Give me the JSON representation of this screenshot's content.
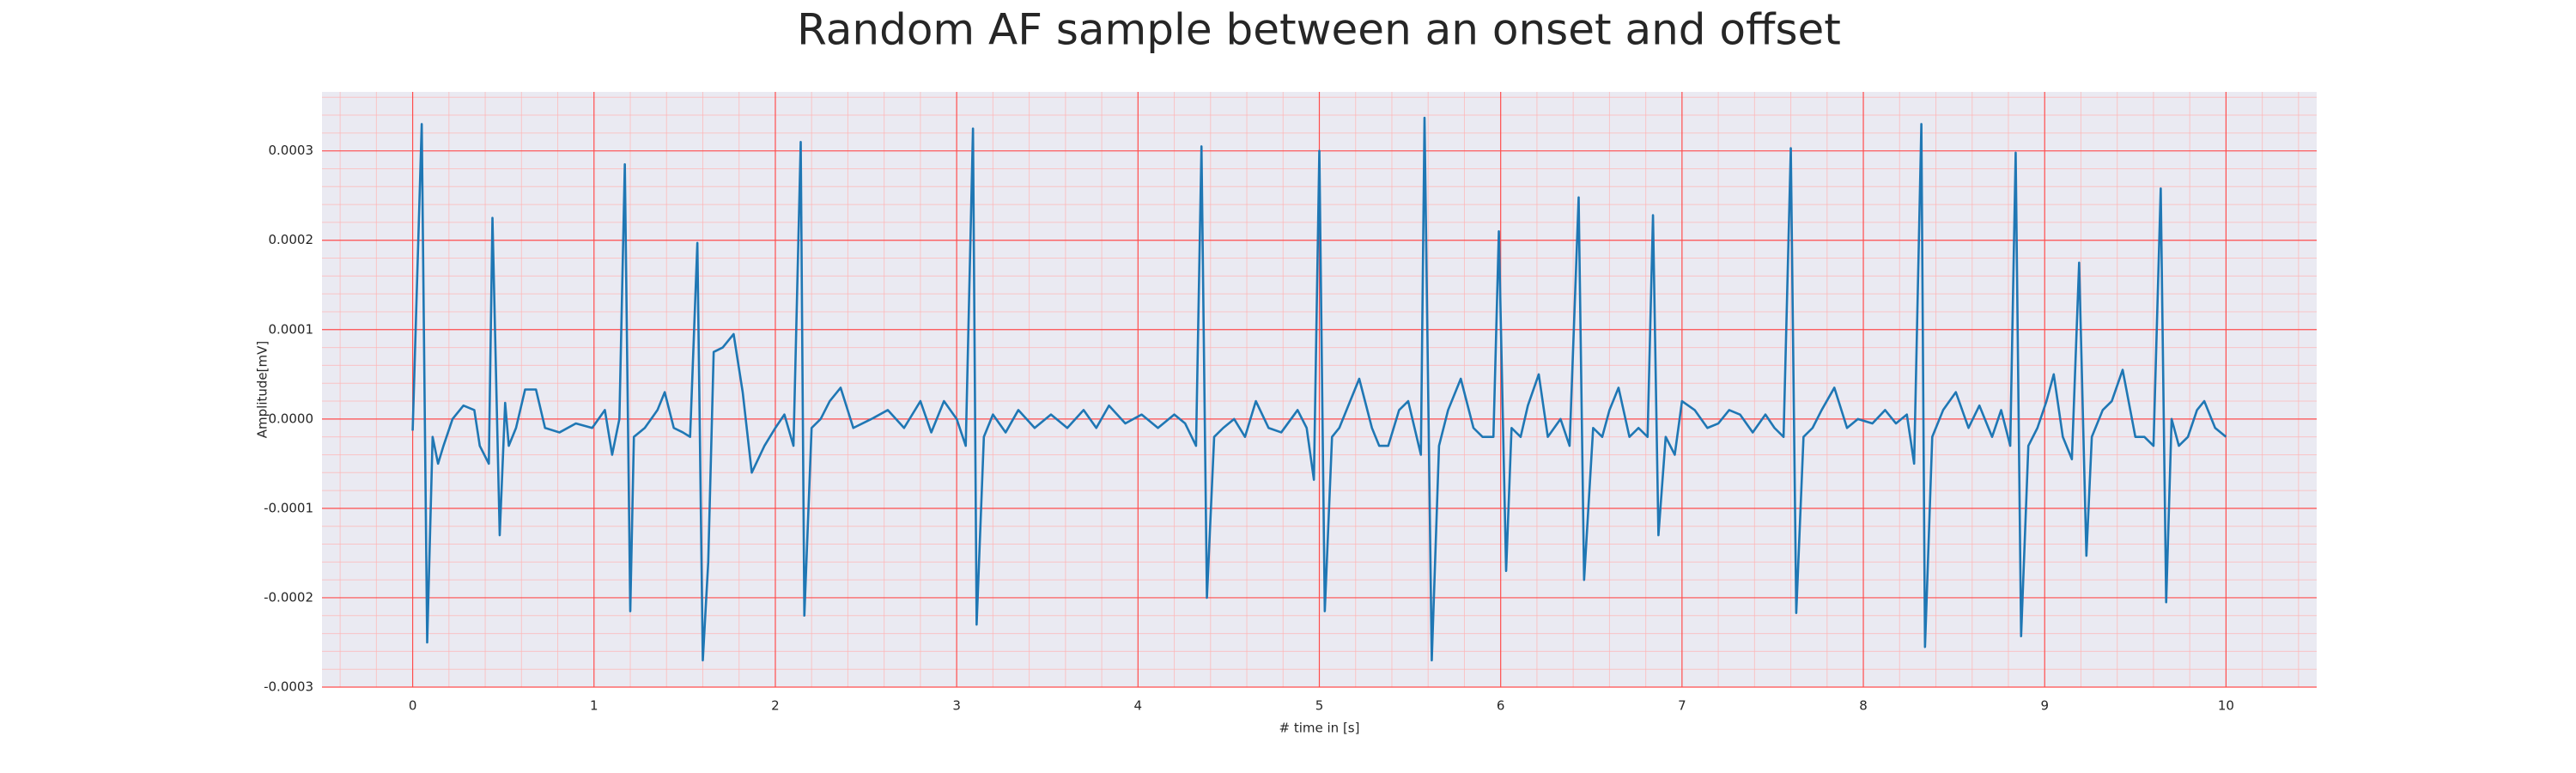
{
  "chart_data": {
    "type": "line",
    "title": "Random AF sample between an onset and offset",
    "x_label": "# time in [s]",
    "y_label": "Amplitude[mV]",
    "color": "#1f77b4",
    "grid": true,
    "minor_grid": true,
    "xlim": [
      -0.5,
      10.5
    ],
    "ylim": [
      -0.0003,
      0.000366
    ],
    "xticks": [
      0,
      1,
      2,
      3,
      4,
      5,
      6,
      7,
      8,
      9,
      10
    ],
    "yticks": [
      -0.0003,
      -0.0002,
      -0.0001,
      {
        "value": 0,
        "label": "0.0000"
      },
      0.0001,
      0.0002,
      0.0003
    ],
    "x": [
      0.0,
      0.05,
      0.08,
      0.11,
      0.14,
      0.17,
      0.22,
      0.28,
      0.34,
      0.37,
      0.42,
      0.44,
      0.48,
      0.51,
      0.53,
      0.57,
      0.62,
      0.68,
      0.73,
      0.81,
      0.9,
      0.99,
      1.06,
      1.1,
      1.14,
      1.17,
      1.2,
      1.22,
      1.28,
      1.35,
      1.39,
      1.44,
      1.49,
      1.53,
      1.57,
      1.6,
      1.63,
      1.66,
      1.71,
      1.77,
      1.82,
      1.87,
      1.94,
      2.0,
      2.05,
      2.1,
      2.14,
      2.16,
      2.2,
      2.25,
      2.3,
      2.36,
      2.43,
      2.53,
      2.62,
      2.71,
      2.8,
      2.86,
      2.93,
      3.0,
      3.05,
      3.09,
      3.11,
      3.15,
      3.2,
      3.27,
      3.34,
      3.43,
      3.52,
      3.61,
      3.7,
      3.77,
      3.84,
      3.93,
      4.02,
      4.11,
      4.2,
      4.26,
      4.32,
      4.35,
      4.38,
      4.42,
      4.47,
      4.53,
      4.59,
      4.65,
      4.72,
      4.79,
      4.88,
      4.93,
      4.97,
      5.0,
      5.03,
      5.07,
      5.11,
      5.17,
      5.22,
      5.29,
      5.33,
      5.38,
      5.44,
      5.49,
      5.56,
      5.58,
      5.62,
      5.66,
      5.71,
      5.78,
      5.85,
      5.9,
      5.96,
      5.99,
      6.03,
      6.06,
      6.11,
      6.15,
      6.21,
      6.26,
      6.33,
      6.38,
      6.43,
      6.46,
      6.51,
      6.56,
      6.6,
      6.65,
      6.71,
      6.76,
      6.81,
      6.84,
      6.87,
      6.91,
      6.96,
      7.0,
      7.07,
      7.14,
      7.2,
      7.26,
      7.32,
      7.39,
      7.46,
      7.51,
      7.56,
      7.6,
      7.63,
      7.67,
      7.72,
      7.77,
      7.84,
      7.91,
      7.97,
      8.05,
      8.12,
      8.18,
      8.24,
      8.28,
      8.32,
      8.34,
      8.38,
      8.44,
      8.51,
      8.58,
      8.64,
      8.71,
      8.76,
      8.81,
      8.84,
      8.87,
      8.91,
      8.96,
      9.01,
      9.05,
      9.1,
      9.15,
      9.19,
      9.23,
      9.26,
      9.32,
      9.37,
      9.43,
      9.5,
      9.55,
      9.6,
      9.64,
      9.67,
      9.7,
      9.74,
      9.79,
      9.84,
      9.88,
      9.94,
      10.0
    ],
    "values": [
      -1.3e-05,
      0.00033,
      -0.00025,
      -2e-05,
      -5e-05,
      -3e-05,
      0,
      1.5e-05,
      1e-05,
      -3e-05,
      -5e-05,
      0.000225,
      -0.00013,
      1.8e-05,
      -3e-05,
      -1e-05,
      3.3e-05,
      3.3e-05,
      -1e-05,
      -1.5e-05,
      -5e-06,
      -1e-05,
      1e-05,
      -4e-05,
      0,
      0.000285,
      -0.000215,
      -2e-05,
      -1e-05,
      1e-05,
      3e-05,
      -1e-05,
      -1.5e-05,
      -2e-05,
      0.000197,
      -0.00027,
      -0.00016,
      7.5e-05,
      8e-05,
      9.5e-05,
      3e-05,
      -6e-05,
      -3e-05,
      -1e-05,
      5e-06,
      -3e-05,
      0.00031,
      -0.00022,
      -1e-05,
      0,
      2e-05,
      3.5e-05,
      -1e-05,
      0,
      1e-05,
      -1e-05,
      2e-05,
      -1.5e-05,
      2e-05,
      0,
      -3e-05,
      0.000325,
      -0.00023,
      -2e-05,
      5e-06,
      -1.5e-05,
      1e-05,
      -1e-05,
      5e-06,
      -1e-05,
      1e-05,
      -1e-05,
      1.5e-05,
      -5e-06,
      5e-06,
      -1e-05,
      5e-06,
      -5e-06,
      -3e-05,
      0.000305,
      -0.0002,
      -2e-05,
      -1e-05,
      0,
      -2e-05,
      2e-05,
      -1e-05,
      -1.5e-05,
      1e-05,
      -1e-05,
      -6.8e-05,
      0.0003,
      -0.000215,
      -2e-05,
      -1e-05,
      2e-05,
      4.5e-05,
      -1e-05,
      -3e-05,
      -3e-05,
      1e-05,
      2e-05,
      -4e-05,
      0.000337,
      -0.00027,
      -3e-05,
      1e-05,
      4.5e-05,
      -1e-05,
      -2e-05,
      -2e-05,
      0.00021,
      -0.00017,
      -1e-05,
      -2e-05,
      1.5e-05,
      5e-05,
      -2e-05,
      0,
      -3e-05,
      0.000248,
      -0.00018,
      -1e-05,
      -2e-05,
      1e-05,
      3.5e-05,
      -2e-05,
      -1e-05,
      -2e-05,
      0.000228,
      -0.00013,
      -2e-05,
      -4e-05,
      2e-05,
      1e-05,
      -1e-05,
      -5e-06,
      1e-05,
      5e-06,
      -1.5e-05,
      5e-06,
      -1e-05,
      -2e-05,
      0.000303,
      -0.000217,
      -2e-05,
      -1e-05,
      1e-05,
      3.5e-05,
      -1e-05,
      0,
      -5e-06,
      1e-05,
      -5e-06,
      5e-06,
      -5e-05,
      0.00033,
      -0.000255,
      -2e-05,
      1e-05,
      3e-05,
      -1e-05,
      1.5e-05,
      -2e-05,
      1e-05,
      -3e-05,
      0.000298,
      -0.000243,
      -3e-05,
      -1e-05,
      2e-05,
      5e-05,
      -2e-05,
      -4.5e-05,
      0.000175,
      -0.000153,
      -2e-05,
      1e-05,
      2e-05,
      5.5e-05,
      -2e-05,
      -2e-05,
      -3e-05,
      0.000258,
      -0.000205,
      0,
      -3e-05,
      -2e-05,
      1e-05,
      2e-05,
      -1e-05,
      -2e-05
    ]
  }
}
